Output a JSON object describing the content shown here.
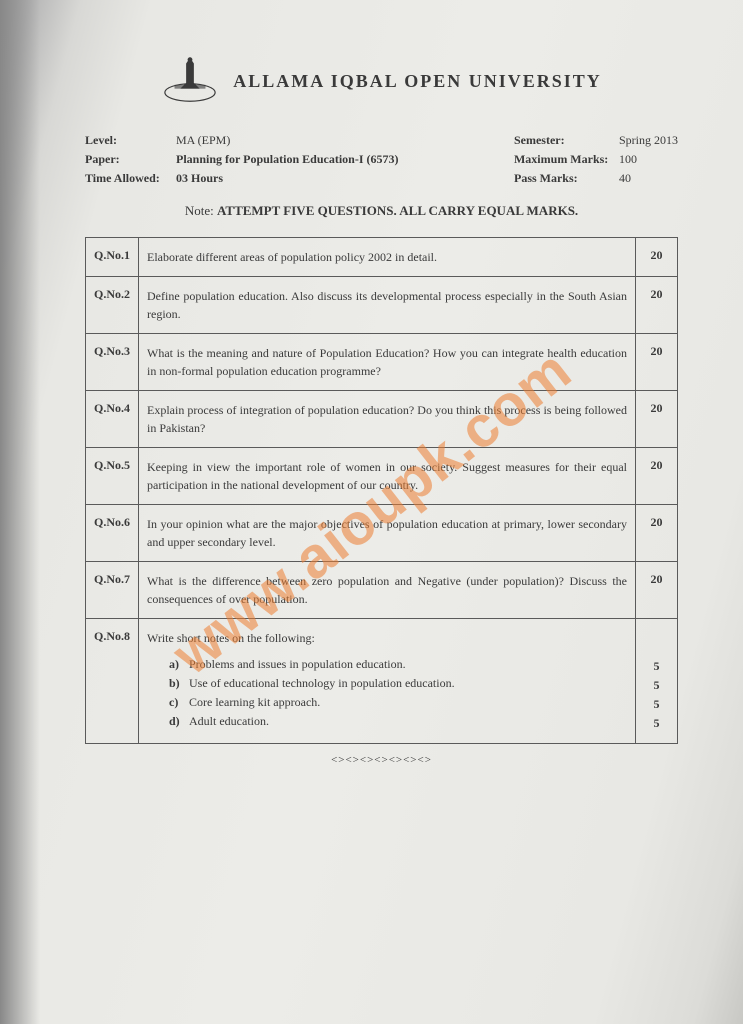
{
  "header": {
    "university_name": "ALLAMA IQBAL OPEN UNIVERSITY"
  },
  "meta": {
    "left": [
      {
        "label": "Level:",
        "value": "MA (EPM)",
        "bold": false
      },
      {
        "label": "Paper:",
        "value": "Planning for Population Education-I  (6573)",
        "bold": true
      },
      {
        "label": "Time Allowed:",
        "value": "03 Hours",
        "bold": true
      }
    ],
    "right": [
      {
        "label": "Semester:",
        "value": "Spring 2013"
      },
      {
        "label": "Maximum Marks:",
        "value": "100"
      },
      {
        "label": "Pass Marks:",
        "value": "40"
      }
    ]
  },
  "note": {
    "label": "Note:",
    "text": "ATTEMPT FIVE QUESTIONS. ALL CARRY EQUAL MARKS."
  },
  "questions": [
    {
      "no": "Q.No.1",
      "text": "Elaborate different areas of population policy 2002 in detail.",
      "marks": "20"
    },
    {
      "no": "Q.No.2",
      "text": "Define population education. Also discuss its developmental process especially in the South Asian region.",
      "marks": "20"
    },
    {
      "no": "Q.No.3",
      "text": "What is the meaning and nature of Population Education? How you can integrate health education in non-formal population education programme?",
      "marks": "20"
    },
    {
      "no": "Q.No.4",
      "text": "Explain process of integration of population education? Do you think this process is being followed in Pakistan?",
      "marks": "20"
    },
    {
      "no": "Q.No.5",
      "text": "Keeping in view the important role of women in our society. Suggest measures for their equal participation in the national development of our country.",
      "marks": "20"
    },
    {
      "no": "Q.No.6",
      "text": "In your opinion what are the major objectives of population education at primary, lower secondary and upper secondary level.",
      "marks": "20"
    },
    {
      "no": "Q.No.7",
      "text": "What is the difference between zero population and Negative (under population)? Discuss the consequences of over population.",
      "marks": "20"
    }
  ],
  "q8": {
    "no": "Q.No.8",
    "intro": "Write short notes on the following:",
    "items": [
      {
        "label": "a)",
        "text": "Problems and issues in population education.",
        "marks": "5"
      },
      {
        "label": "b)",
        "text": "Use of educational technology in population education.",
        "marks": "5"
      },
      {
        "label": "c)",
        "text": "Core learning kit approach.",
        "marks": "5"
      },
      {
        "label": "d)",
        "text": "Adult education.",
        "marks": "5"
      }
    ]
  },
  "footer_deco": "<><><><><><><>",
  "watermark": "www.aioupk.com",
  "colors": {
    "text": "#3a3a3a",
    "border": "#5a5a5a",
    "watermark": "rgba(237,125,49,0.55)",
    "paper_bg": "#ecece8"
  }
}
